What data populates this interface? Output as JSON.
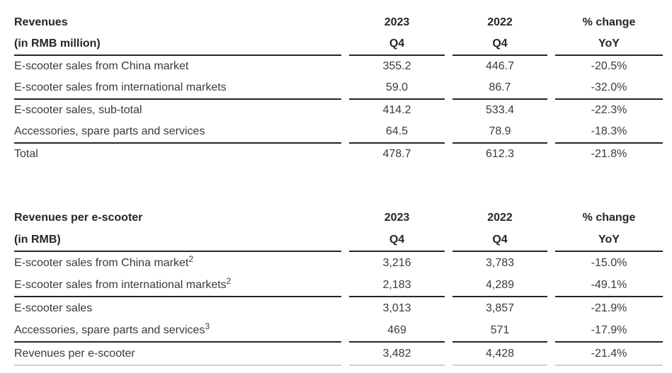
{
  "colors": {
    "background": "#ffffff",
    "text": "#3a3a3a",
    "heading": "#262626",
    "rule": "#262626",
    "rule_light": "#cfcfcf"
  },
  "tables": [
    {
      "title_line1": "Revenues",
      "title_line2": "(in RMB million)",
      "columns": [
        {
          "line1": "2023",
          "line2": "Q4"
        },
        {
          "line1": "2022",
          "line2": "Q4"
        },
        {
          "line1": "% change",
          "line2": "YoY"
        }
      ],
      "rows": [
        {
          "label": "E-scooter sales from China market",
          "sup": "",
          "values": [
            "355.2",
            "446.7",
            "-20.5%"
          ],
          "rule_after": "none"
        },
        {
          "label": "E-scooter sales from international markets",
          "sup": "",
          "values": [
            "59.0",
            "86.7",
            "-32.0%"
          ],
          "rule_after": "dark"
        },
        {
          "label": "E-scooter sales, sub-total",
          "sup": "",
          "values": [
            "414.2",
            "533.4",
            "-22.3%"
          ],
          "rule_after": "none"
        },
        {
          "label": "Accessories, spare parts and services",
          "sup": "",
          "values": [
            "64.5",
            "78.9",
            "-18.3%"
          ],
          "rule_after": "dark"
        },
        {
          "label": "Total",
          "sup": "",
          "values": [
            "478.7",
            "612.3",
            "-21.8%"
          ],
          "rule_after": "none"
        }
      ]
    },
    {
      "title_line1": "Revenues per e-scooter",
      "title_line2": "(in RMB)",
      "columns": [
        {
          "line1": "2023",
          "line2": "Q4"
        },
        {
          "line1": "2022",
          "line2": "Q4"
        },
        {
          "line1": "% change",
          "line2": "YoY"
        }
      ],
      "rows": [
        {
          "label": "E-scooter sales from China market",
          "sup": "2",
          "values": [
            "3,216",
            "3,783",
            "-15.0%"
          ],
          "rule_after": "none"
        },
        {
          "label": "E-scooter sales from international markets",
          "sup": "2",
          "values": [
            "2,183",
            "4,289",
            "-49.1%"
          ],
          "rule_after": "dark"
        },
        {
          "label": "E-scooter sales",
          "sup": "",
          "values": [
            "3,013",
            "3,857",
            "-21.9%"
          ],
          "rule_after": "none"
        },
        {
          "label": "Accessories, spare parts and services",
          "sup": "3",
          "values": [
            "469",
            "571",
            "-17.9%"
          ],
          "rule_after": "dark"
        },
        {
          "label": "Revenues per e-scooter",
          "sup": "",
          "values": [
            "3,482",
            "4,428",
            "-21.4%"
          ],
          "rule_after": "light"
        }
      ]
    }
  ]
}
